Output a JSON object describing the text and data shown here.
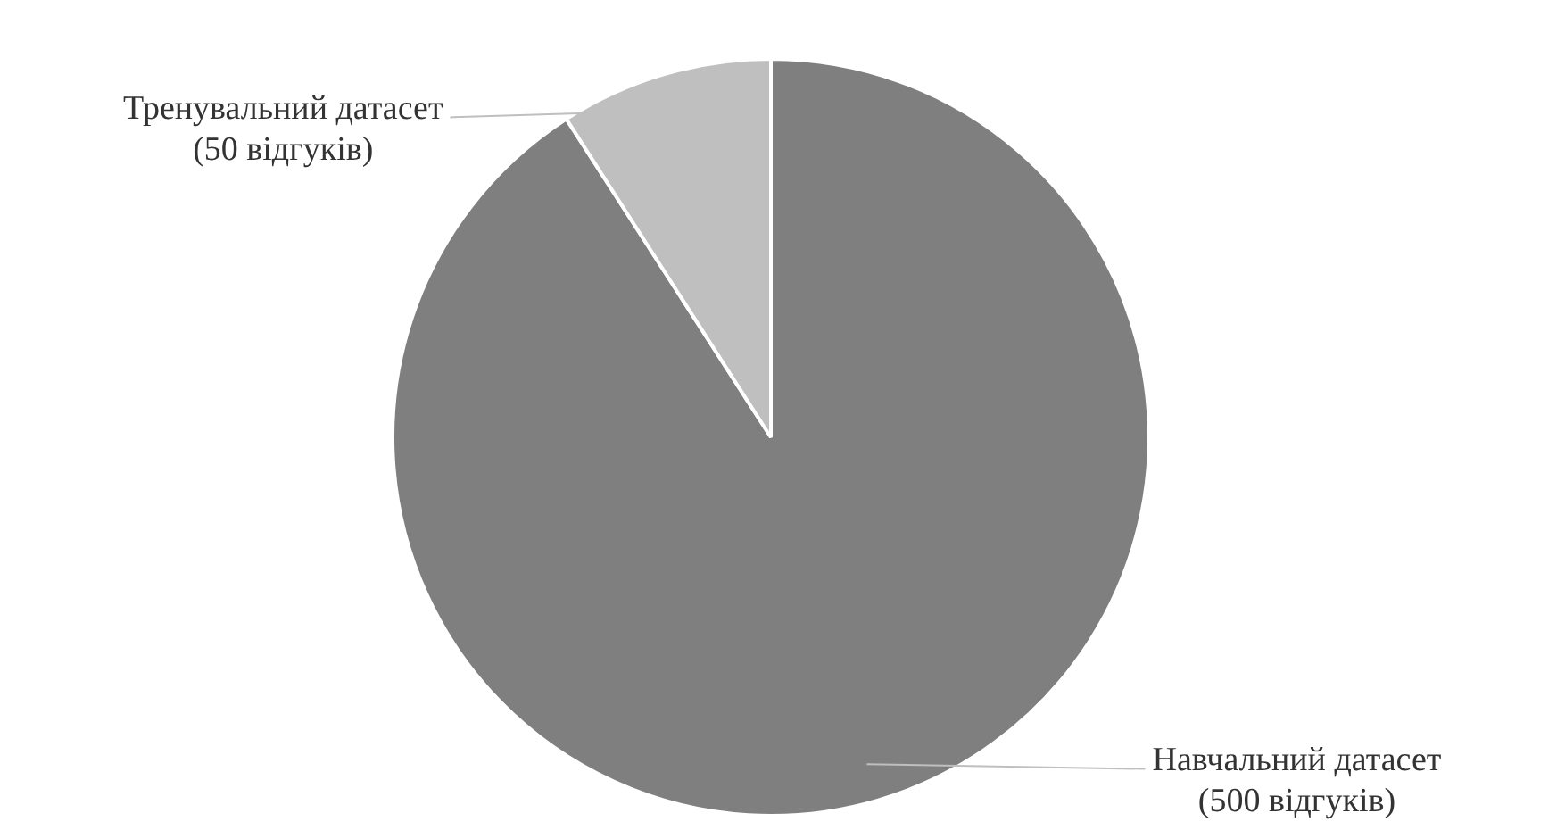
{
  "chart_data": {
    "type": "pie",
    "categories": [
      "Навчальний датасет",
      "Тренувальний датасет"
    ],
    "values": [
      500,
      50
    ],
    "value_labels": [
      "(500 відгуків)",
      "(50 відгуків)"
    ],
    "colors": [
      "#7f7f7f",
      "#bfbfbf"
    ],
    "legend": false
  }
}
